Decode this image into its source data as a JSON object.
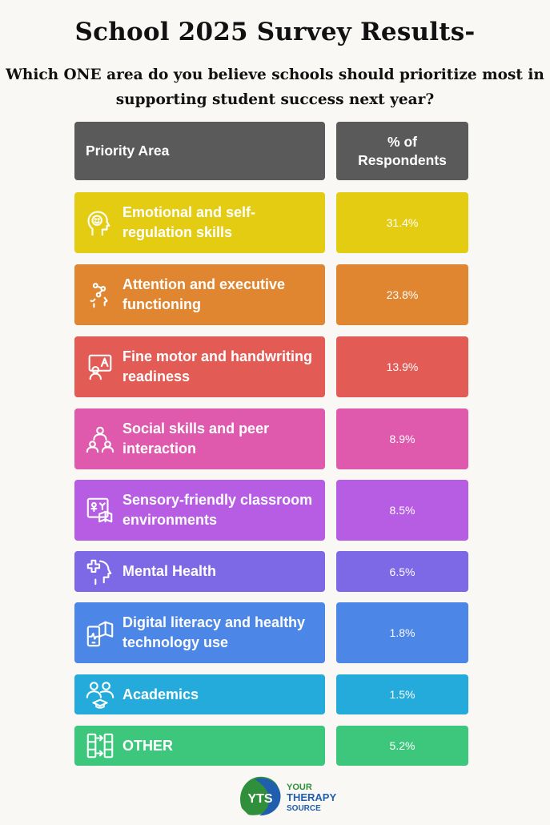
{
  "header": {
    "title": "School 2025 Survey Results-",
    "subtitle": "Which ONE area do you believe schools should prioritize most in supporting student success next year?"
  },
  "table": {
    "col_area": "Priority Area",
    "col_pct": "% of Respondents",
    "rows": [
      {
        "label": "Emotional and self-regulation skills",
        "pct": "31.4%",
        "color": "#e3cc12",
        "icon": "head-smile-icon"
      },
      {
        "label": "Attention and executive functioning",
        "pct": "23.8%",
        "color": "#e08631",
        "icon": "head-network-icon"
      },
      {
        "label": "Fine motor and handwriting readiness",
        "pct": "13.9%",
        "color": "#e35b55",
        "icon": "student-board-icon"
      },
      {
        "label": "Social skills and peer interaction",
        "pct": "8.9%",
        "color": "#df5aad",
        "icon": "people-group-icon"
      },
      {
        "label": "Sensory-friendly classroom environments",
        "pct": "8.5%",
        "color": "#b75de4",
        "icon": "classroom-book-icon"
      },
      {
        "label": "Mental Health",
        "pct": "6.5%",
        "color": "#7d68e6",
        "icon": "head-cross-icon"
      },
      {
        "label": "Digital literacy and healthy technology use",
        "pct": "1.8%",
        "color": "#4c86e6",
        "icon": "phone-book-icon"
      },
      {
        "label": "Academics",
        "pct": "1.5%",
        "color": "#25abdb",
        "icon": "students-cap-icon"
      },
      {
        "label": "OTHER",
        "pct": "5.2%",
        "color": "#3dc77d",
        "icon": "flow-boxes-icon"
      }
    ]
  },
  "logo": {
    "mark": "YTS",
    "line1": "YOUR",
    "line2": "THERAPY",
    "line3": "SOURCE"
  }
}
